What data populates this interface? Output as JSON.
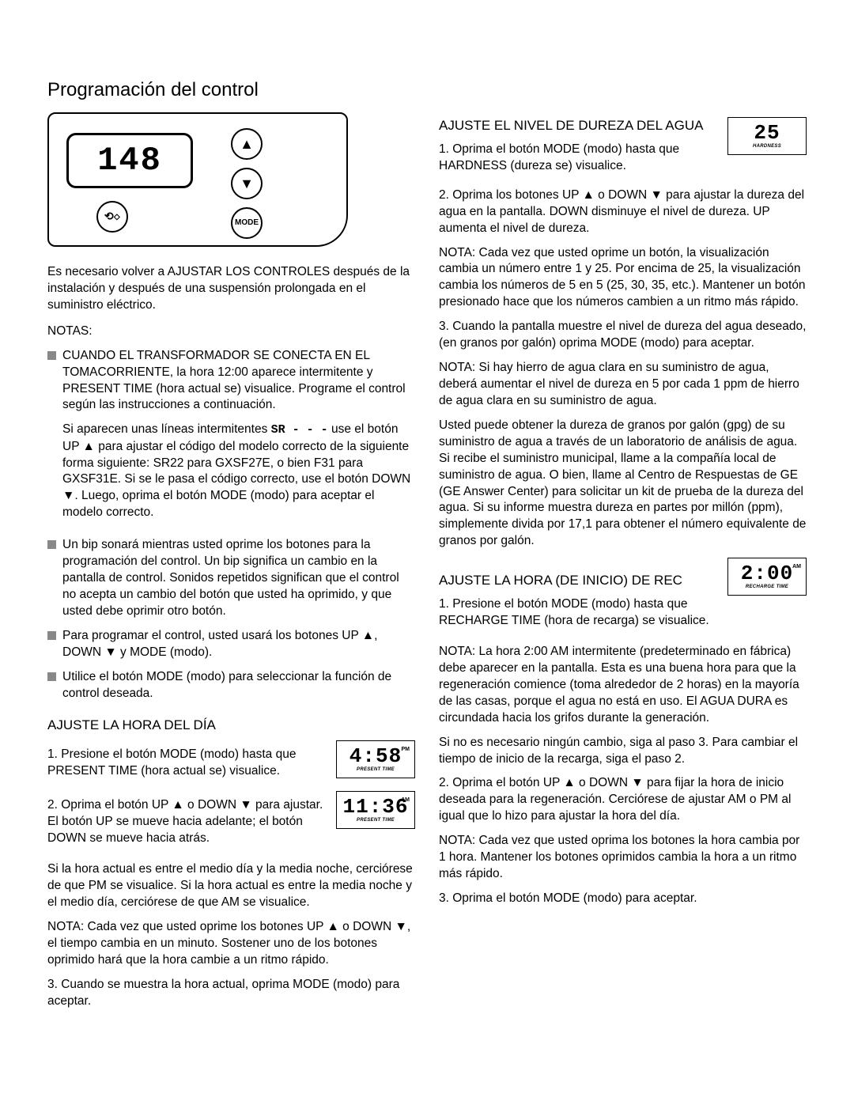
{
  "title": "Programación del control",
  "control_panel": {
    "lcd_value": "148",
    "up_symbol": "▲",
    "down_symbol": "▼",
    "mode_label": "MODE",
    "recharge_symbol": "⟲◇"
  },
  "left": {
    "intro": "Es necesario volver a AJUSTAR LOS CONTROLES después de la instalación y después de una suspensión prolongada en el suministro eléctrico.",
    "notas_label": "NOTAS:",
    "b1": "CUANDO EL TRANSFORMADOR SE CONECTA EN EL TOMACORRIENTE, la hora 12:00 aparece intermitente y PRESENT TIME (hora actual se) visualice. Programe el control según las instrucciones a continuación.",
    "b1b_pre": "Si aparecen unas líneas intermitentes ",
    "b1b_seg": "SR - - -",
    "b1b_post": " use el botón UP ▲ para ajustar el código del modelo correcto de la siguiente forma siguiente: SR22 para GXSF27E, o bien F31 para GXSF31E. Si se le pasa el código correcto, use el botón DOWN ▼. Luego, oprima el botón MODE (modo) para aceptar el modelo correcto.",
    "b2": "Un bip sonará mientras usted oprime los botones para la programación del control. Un bip significa un cambio en la pantalla de control. Sonidos repetidos significan que el control no acepta un cambio del botón que usted ha oprimido, y que usted debe oprimir otro botón.",
    "b3": "Para programar el control, usted usará los botones UP ▲, DOWN ▼ y MODE (modo).",
    "b4": "Utilice el botón MODE (modo) para seleccionar la función de control deseada.",
    "hora_title": "AJUSTE LA HORA DEL DÍA",
    "hora_lcd1_val": "4:58",
    "hora_lcd1_ampm": "PM",
    "hora_lcd1_sub": "PRESENT TIME",
    "hora_1": "1. Presione el botón MODE (modo) hasta que PRESENT TIME (hora actual se) visualice.",
    "hora_lcd2_val": "11:36",
    "hora_lcd2_ampm": "AM",
    "hora_lcd2_sub": "PRESENT TIME",
    "hora_2": "2. Oprima el botón UP ▲ o DOWN ▼ para ajustar. El botón UP se mueve hacia adelante; el botón DOWN se mueve hacia atrás.",
    "hora_p": "Si la hora actual es entre el medio día y la media noche, cerciórese de que PM se visualice. Si la hora actual es entre la media noche y el medio día, cerciórese de que AM se visualice.",
    "hora_nota": "NOTA: Cada vez que usted oprime los botones UP ▲ o DOWN ▼, el tiempo cambia en un minuto. Sostener uno de los botones oprimido hará que la hora cambie a un ritmo rápido.",
    "hora_3": "3. Cuando se muestra la hora actual, oprima MODE (modo) para aceptar."
  },
  "right": {
    "dureza_title": "AJUSTE EL NIVEL DE DUREZA DEL AGUA",
    "dureza_lcd_val": "25",
    "dureza_lcd_sub": "HARDNESS",
    "dureza_1": "1. Oprima el botón MODE (modo) hasta que HARDNESS (dureza se) visualice.",
    "dureza_2": "2. Oprima los botones UP ▲ o DOWN ▼ para ajustar la dureza del agua en la pantalla. DOWN disminuye el nivel de dureza. UP aumenta el nivel de dureza.",
    "dureza_nota": "NOTA: Cada vez que usted oprime un botón, la visualización cambia un número entre 1 y 25. Por encima de 25, la visualización cambia los números de 5 en 5 (25, 30, 35, etc.). Mantener un botón presionado hace que los números cambien a un ritmo más rápido.",
    "dureza_3": "3. Cuando la pantalla muestre el nivel de dureza del agua deseado, (en granos por galón) oprima MODE (modo) para aceptar.",
    "dureza_nota2": "NOTA: Si hay hierro de agua clara en su suministro de agua, deberá aumentar el nivel de dureza en 5 por cada 1 ppm de hierro de agua clara en su suministro de agua.",
    "dureza_p": "Usted puede obtener la dureza de granos por galón (gpg) de su suministro de agua a través de un laboratorio de análisis de agua. Si recibe el suministro municipal, llame a la compañía local de suministro de agua. O bien, llame al Centro de Respuestas de GE (GE Answer Center) para solicitar un kit de prueba de la dureza del agua. Si su informe muestra dureza en partes por millón (ppm), simplemente divida por 17,1 para obtener el número equivalente de granos por galón.",
    "rec_title": "AJUSTE LA HORA (DE INICIO) DE REC",
    "rec_lcd_val": "2:00",
    "rec_lcd_ampm": "AM",
    "rec_lcd_sub": "RECHARGE TIME",
    "rec_1": "1. Presione el botón MODE (modo) hasta que RECHARGE TIME (hora de recarga) se visualice.",
    "rec_nota": "NOTA: La hora 2:00 AM intermitente (predeterminado en fábrica) debe aparecer en la pantalla. Esta es una buena hora para que la regeneración comience (toma alrededor de 2 horas) en la mayoría de las casas, porque el agua no está en uso. El AGUA DURA es circundada hacia los grifos durante la generación.",
    "rec_p1": "Si no es necesario ningún cambio, siga al paso 3. Para cambiar el tiempo de inicio de la recarga, siga el paso 2.",
    "rec_2": "2. Oprima el botón UP ▲ o DOWN ▼ para fijar la hora de inicio deseada para la regeneración. Cerciórese de ajustar AM o PM al igual que lo hizo para ajustar la hora del día.",
    "rec_nota2": "NOTA: Cada vez que usted oprima los botones la hora cambia por 1 hora. Mantener los botones oprimidos cambia la hora a un ritmo más rápido.",
    "rec_3": "3. Oprima el botón MODE (modo) para aceptar."
  }
}
